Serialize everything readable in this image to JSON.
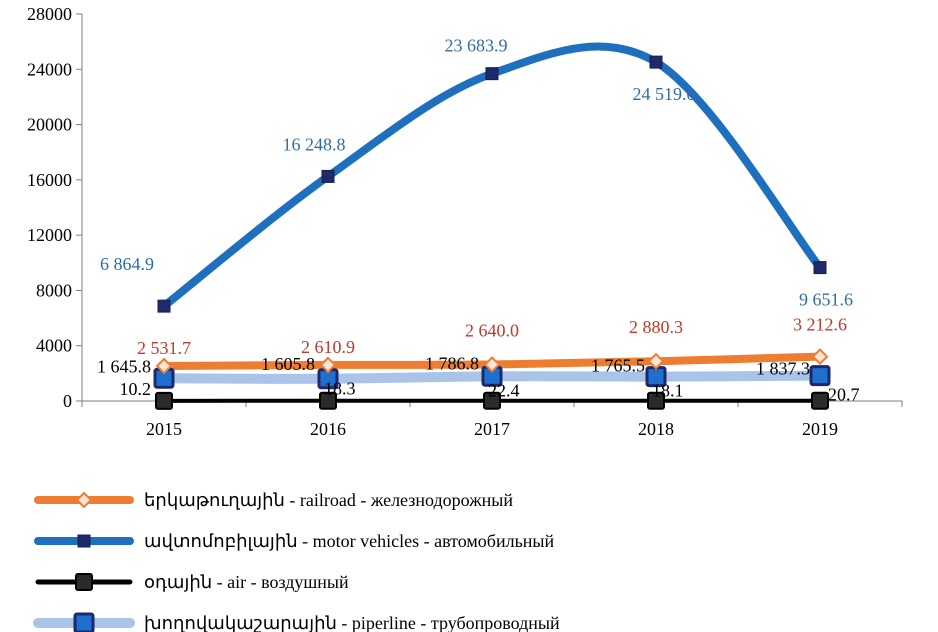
{
  "chart_data": {
    "type": "line",
    "categories": [
      "2015",
      "2016",
      "2017",
      "2018",
      "2019"
    ],
    "ylim": [
      0,
      28000
    ],
    "yticks": [
      "0",
      "4000",
      "8000",
      "12000",
      "16000",
      "20000",
      "24000",
      "28000"
    ],
    "yticks_values": [
      0,
      4000,
      8000,
      12000,
      16000,
      20000,
      24000,
      28000
    ],
    "grid": false,
    "legend_position": "bottom",
    "series": [
      {
        "key": "railroad",
        "name": "երկաթուղային - railroad - железнодорожный",
        "values": [
          2531.7,
          2610.9,
          2640.0,
          2880.3,
          3212.6
        ],
        "labels": [
          "2 531.7",
          "2 610.9",
          "2 640.0",
          "2 880.3",
          "3 212.6"
        ],
        "color": "#ED7D31",
        "label_color": "#C0392B",
        "marker": "diamond"
      },
      {
        "key": "motor",
        "name": "ավտոմոբիլային - motor vehicles - автомобильный",
        "values": [
          6864.9,
          16248.8,
          23683.9,
          24519.0,
          9651.6
        ],
        "labels": [
          "6 864.9",
          "16 248.8",
          "23 683.9",
          "24 519.0",
          "9 651.6"
        ],
        "color": "#1F6FBF",
        "label_color": "#2E6DA4",
        "marker": "square-dark"
      },
      {
        "key": "air",
        "name": "օդային - air - воздушный",
        "values": [
          10.2,
          18.3,
          22.4,
          18.1,
          20.7
        ],
        "labels": [
          "10.2",
          "18.3",
          "22.4",
          "18.1",
          "20.7"
        ],
        "color": "#000000",
        "label_color": "#000000",
        "marker": "square-black"
      },
      {
        "key": "pipeline",
        "name": "խողովակաշարային - piperline - трубопроводный",
        "values": [
          1645.8,
          1605.8,
          1786.8,
          1765.5,
          1837.3
        ],
        "labels": [
          "1 645.8",
          "1 605.8",
          "1 786.8",
          "1 765.5",
          "1 837.3"
        ],
        "color": "#A9C4E8",
        "label_color": "#000000",
        "marker": "square-blue"
      }
    ]
  }
}
